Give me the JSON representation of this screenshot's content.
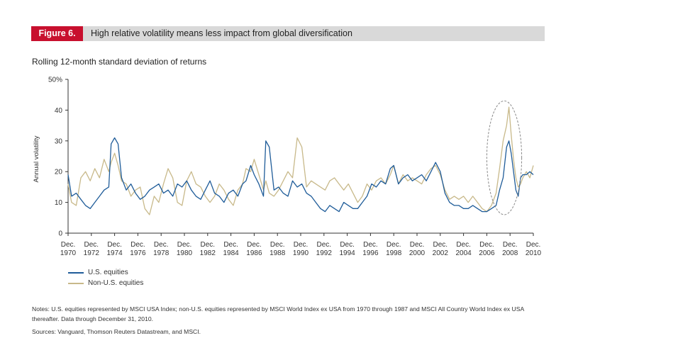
{
  "figure": {
    "label": "Figure 6.",
    "title": "High relative volatility means less impact from global diversification",
    "subtitle": "Rolling 12-month standard deviation of returns"
  },
  "colors": {
    "badge": "#c8102e",
    "header_bar": "#d9d9d9",
    "us": "#1f5c99",
    "nonus": "#c8b98a",
    "oval": "#8a8a8a"
  },
  "chart_data": {
    "type": "line",
    "ylabel": "Annual volatility",
    "ylim": [
      0,
      50
    ],
    "yticks": [
      0,
      10,
      20,
      30,
      40,
      50
    ],
    "ytick_labels": [
      "0",
      "10",
      "20",
      "30",
      "40",
      "50%"
    ],
    "xlim": [
      1970.9,
      2010.9
    ],
    "xticks": [
      1970.9,
      1972.9,
      1974.9,
      1976.9,
      1978.9,
      1980.9,
      1982.9,
      1984.9,
      1986.9,
      1988.9,
      1990.9,
      1992.9,
      1994.9,
      1996.9,
      1998.9,
      2000.9,
      2002.9,
      2004.9,
      2006.9,
      2008.9,
      2010.9
    ],
    "xtick_month": "Dec.",
    "xtick_years": [
      "1970",
      "1972",
      "1974",
      "1976",
      "1978",
      "1980",
      "1982",
      "1984",
      "1986",
      "1988",
      "1990",
      "1992",
      "1994",
      "1996",
      "1998",
      "2000",
      "2002",
      "2004",
      "2006",
      "2008",
      "2010"
    ],
    "highlight_ellipse": {
      "x_range": [
        2006.9,
        2009.9
      ],
      "y_range": [
        6,
        43
      ]
    },
    "series": [
      {
        "name": "U.S. equities",
        "x": [
          1970.9,
          1971.2,
          1971.6,
          1972.0,
          1972.4,
          1972.8,
          1973.2,
          1973.6,
          1974.0,
          1974.4,
          1974.6,
          1974.9,
          1975.2,
          1975.5,
          1975.9,
          1976.3,
          1976.7,
          1977.1,
          1977.5,
          1977.9,
          1978.3,
          1978.7,
          1979.1,
          1979.5,
          1979.9,
          1980.3,
          1980.7,
          1981.1,
          1981.5,
          1981.9,
          1982.3,
          1982.7,
          1983.1,
          1983.5,
          1983.9,
          1984.3,
          1984.7,
          1985.1,
          1985.5,
          1985.9,
          1986.2,
          1986.6,
          1986.9,
          1987.3,
          1987.7,
          1987.9,
          1988.2,
          1988.6,
          1989.0,
          1989.4,
          1989.8,
          1990.2,
          1990.6,
          1991.0,
          1991.4,
          1991.8,
          1992.2,
          1992.6,
          1993.0,
          1993.4,
          1993.8,
          1994.2,
          1994.6,
          1995.0,
          1995.4,
          1995.8,
          1996.2,
          1996.6,
          1997.0,
          1997.4,
          1997.8,
          1998.2,
          1998.6,
          1998.9,
          1999.3,
          1999.7,
          2000.1,
          2000.5,
          2000.9,
          2001.3,
          2001.7,
          2002.1,
          2002.5,
          2002.9,
          2003.3,
          2003.7,
          2004.1,
          2004.5,
          2004.9,
          2005.3,
          2005.7,
          2006.1,
          2006.5,
          2006.9,
          2007.3,
          2007.7,
          2008.0,
          2008.3,
          2008.6,
          2008.8,
          2009.0,
          2009.2,
          2009.4,
          2009.6,
          2009.8,
          2010.0,
          2010.3,
          2010.6,
          2010.9
        ],
        "values": [
          19,
          12,
          13,
          11,
          9,
          8,
          10,
          12,
          14,
          15,
          29,
          31,
          29,
          18,
          14,
          16,
          13,
          11,
          12,
          14,
          15,
          16,
          13,
          14,
          12,
          16,
          15,
          17,
          14,
          12,
          11,
          14,
          17,
          13,
          12,
          10,
          13,
          14,
          12,
          16,
          17,
          22,
          19,
          16,
          12,
          30,
          28,
          14,
          15,
          13,
          12,
          17,
          15,
          16,
          13,
          12,
          10,
          8,
          7,
          9,
          8,
          7,
          10,
          9,
          8,
          8,
          10,
          12,
          16,
          15,
          17,
          16,
          21,
          22,
          16,
          18,
          19,
          17,
          18,
          19,
          17,
          20,
          23,
          20,
          13,
          10,
          9,
          9,
          8,
          8,
          9,
          8,
          7,
          7,
          8,
          9,
          14,
          18,
          28,
          30,
          26,
          20,
          14,
          12,
          18,
          19,
          19,
          20,
          19
        ]
      },
      {
        "name": "Non-U.S. equities",
        "x": [
          1970.9,
          1971.2,
          1971.6,
          1972.0,
          1972.4,
          1972.8,
          1973.2,
          1973.6,
          1974.0,
          1974.4,
          1974.6,
          1974.9,
          1975.2,
          1975.5,
          1975.9,
          1976.3,
          1976.7,
          1977.1,
          1977.5,
          1977.9,
          1978.3,
          1978.7,
          1979.1,
          1979.5,
          1979.9,
          1980.3,
          1980.7,
          1981.1,
          1981.5,
          1981.9,
          1982.3,
          1982.7,
          1983.1,
          1983.5,
          1983.9,
          1984.3,
          1984.7,
          1985.1,
          1985.5,
          1985.9,
          1986.2,
          1986.6,
          1986.9,
          1987.3,
          1987.7,
          1987.9,
          1988.2,
          1988.6,
          1989.0,
          1989.4,
          1989.8,
          1990.2,
          1990.6,
          1991.0,
          1991.4,
          1991.8,
          1992.2,
          1992.6,
          1993.0,
          1993.4,
          1993.8,
          1994.2,
          1994.6,
          1995.0,
          1995.4,
          1995.8,
          1996.2,
          1996.6,
          1997.0,
          1997.4,
          1997.8,
          1998.2,
          1998.6,
          1998.9,
          1999.3,
          1999.7,
          2000.1,
          2000.5,
          2000.9,
          2001.3,
          2001.7,
          2002.1,
          2002.5,
          2002.9,
          2003.3,
          2003.7,
          2004.1,
          2004.5,
          2004.9,
          2005.3,
          2005.7,
          2006.1,
          2006.5,
          2006.9,
          2007.3,
          2007.7,
          2008.0,
          2008.3,
          2008.6,
          2008.8,
          2009.0,
          2009.2,
          2009.4,
          2009.6,
          2009.8,
          2010.0,
          2010.3,
          2010.6,
          2010.9
        ],
        "values": [
          16,
          10,
          9,
          18,
          20,
          17,
          21,
          18,
          24,
          20,
          23,
          26,
          22,
          17,
          16,
          12,
          14,
          15,
          8,
          6,
          12,
          10,
          16,
          21,
          18,
          10,
          9,
          17,
          20,
          16,
          15,
          12,
          10,
          12,
          16,
          14,
          11,
          9,
          14,
          16,
          21,
          20,
          24,
          19,
          14,
          17,
          13,
          12,
          14,
          17,
          20,
          18,
          31,
          28,
          15,
          17,
          16,
          15,
          14,
          17,
          18,
          16,
          14,
          16,
          13,
          10,
          12,
          16,
          14,
          17,
          18,
          16,
          19,
          22,
          16,
          19,
          17,
          18,
          17,
          16,
          19,
          21,
          22,
          19,
          14,
          11,
          12,
          11,
          12,
          10,
          12,
          10,
          8,
          7,
          9,
          13,
          21,
          30,
          35,
          41,
          32,
          24,
          18,
          15,
          16,
          18,
          20,
          18,
          22
        ]
      }
    ]
  },
  "legend": {
    "us": "U.S. equities",
    "nonus": "Non-U.S. equities"
  },
  "notes": {
    "text": "Notes: U.S. equities represented by MSCI USA Index; non-U.S. equities represented by MSCI World Index ex USA from 1970 through 1987 and MSCI All Country World Index ex USA thereafter. Data through December 31, 2010.",
    "sources": "Sources: Vanguard, Thomson Reuters Datastream, and MSCI."
  }
}
